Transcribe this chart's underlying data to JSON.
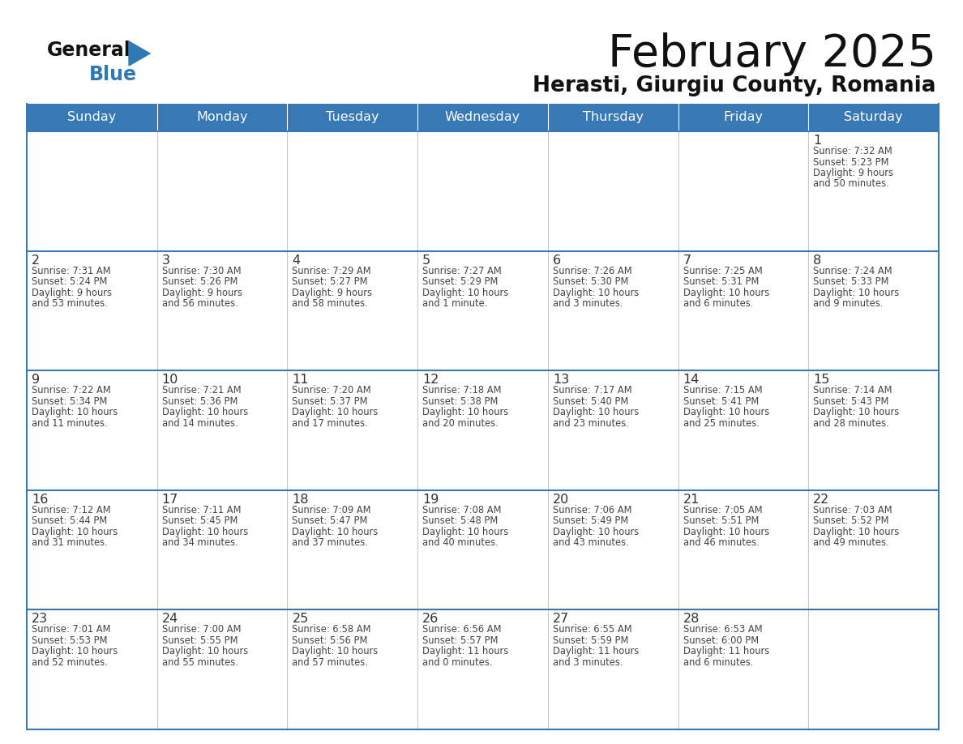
{
  "title": "February 2025",
  "subtitle": "Herasti, Giurgiu County, Romania",
  "days_of_week": [
    "Sunday",
    "Monday",
    "Tuesday",
    "Wednesday",
    "Thursday",
    "Friday",
    "Saturday"
  ],
  "header_bg": "#3878b4",
  "header_text": "#ffffff",
  "cell_bg": "#ffffff",
  "cell_border": "#3878b4",
  "row_separator": "#3878b4",
  "col_separator": "#aaaaaa",
  "day_number_color": "#333333",
  "cell_text_color": "#444444",
  "title_color": "#111111",
  "subtitle_color": "#111111",
  "calendar_data": [
    [
      null,
      null,
      null,
      null,
      null,
      null,
      {
        "day": "1",
        "sunrise": "7:32 AM",
        "sunset": "5:23 PM",
        "daylight": "9 hours",
        "daylight2": "and 50 minutes."
      }
    ],
    [
      {
        "day": "2",
        "sunrise": "7:31 AM",
        "sunset": "5:24 PM",
        "daylight": "9 hours",
        "daylight2": "and 53 minutes."
      },
      {
        "day": "3",
        "sunrise": "7:30 AM",
        "sunset": "5:26 PM",
        "daylight": "9 hours",
        "daylight2": "and 56 minutes."
      },
      {
        "day": "4",
        "sunrise": "7:29 AM",
        "sunset": "5:27 PM",
        "daylight": "9 hours",
        "daylight2": "and 58 minutes."
      },
      {
        "day": "5",
        "sunrise": "7:27 AM",
        "sunset": "5:29 PM",
        "daylight": "10 hours",
        "daylight2": "and 1 minute."
      },
      {
        "day": "6",
        "sunrise": "7:26 AM",
        "sunset": "5:30 PM",
        "daylight": "10 hours",
        "daylight2": "and 3 minutes."
      },
      {
        "day": "7",
        "sunrise": "7:25 AM",
        "sunset": "5:31 PM",
        "daylight": "10 hours",
        "daylight2": "and 6 minutes."
      },
      {
        "day": "8",
        "sunrise": "7:24 AM",
        "sunset": "5:33 PM",
        "daylight": "10 hours",
        "daylight2": "and 9 minutes."
      }
    ],
    [
      {
        "day": "9",
        "sunrise": "7:22 AM",
        "sunset": "5:34 PM",
        "daylight": "10 hours",
        "daylight2": "and 11 minutes."
      },
      {
        "day": "10",
        "sunrise": "7:21 AM",
        "sunset": "5:36 PM",
        "daylight": "10 hours",
        "daylight2": "and 14 minutes."
      },
      {
        "day": "11",
        "sunrise": "7:20 AM",
        "sunset": "5:37 PM",
        "daylight": "10 hours",
        "daylight2": "and 17 minutes."
      },
      {
        "day": "12",
        "sunrise": "7:18 AM",
        "sunset": "5:38 PM",
        "daylight": "10 hours",
        "daylight2": "and 20 minutes."
      },
      {
        "day": "13",
        "sunrise": "7:17 AM",
        "sunset": "5:40 PM",
        "daylight": "10 hours",
        "daylight2": "and 23 minutes."
      },
      {
        "day": "14",
        "sunrise": "7:15 AM",
        "sunset": "5:41 PM",
        "daylight": "10 hours",
        "daylight2": "and 25 minutes."
      },
      {
        "day": "15",
        "sunrise": "7:14 AM",
        "sunset": "5:43 PM",
        "daylight": "10 hours",
        "daylight2": "and 28 minutes."
      }
    ],
    [
      {
        "day": "16",
        "sunrise": "7:12 AM",
        "sunset": "5:44 PM",
        "daylight": "10 hours",
        "daylight2": "and 31 minutes."
      },
      {
        "day": "17",
        "sunrise": "7:11 AM",
        "sunset": "5:45 PM",
        "daylight": "10 hours",
        "daylight2": "and 34 minutes."
      },
      {
        "day": "18",
        "sunrise": "7:09 AM",
        "sunset": "5:47 PM",
        "daylight": "10 hours",
        "daylight2": "and 37 minutes."
      },
      {
        "day": "19",
        "sunrise": "7:08 AM",
        "sunset": "5:48 PM",
        "daylight": "10 hours",
        "daylight2": "and 40 minutes."
      },
      {
        "day": "20",
        "sunrise": "7:06 AM",
        "sunset": "5:49 PM",
        "daylight": "10 hours",
        "daylight2": "and 43 minutes."
      },
      {
        "day": "21",
        "sunrise": "7:05 AM",
        "sunset": "5:51 PM",
        "daylight": "10 hours",
        "daylight2": "and 46 minutes."
      },
      {
        "day": "22",
        "sunrise": "7:03 AM",
        "sunset": "5:52 PM",
        "daylight": "10 hours",
        "daylight2": "and 49 minutes."
      }
    ],
    [
      {
        "day": "23",
        "sunrise": "7:01 AM",
        "sunset": "5:53 PM",
        "daylight": "10 hours",
        "daylight2": "and 52 minutes."
      },
      {
        "day": "24",
        "sunrise": "7:00 AM",
        "sunset": "5:55 PM",
        "daylight": "10 hours",
        "daylight2": "and 55 minutes."
      },
      {
        "day": "25",
        "sunrise": "6:58 AM",
        "sunset": "5:56 PM",
        "daylight": "10 hours",
        "daylight2": "and 57 minutes."
      },
      {
        "day": "26",
        "sunrise": "6:56 AM",
        "sunset": "5:57 PM",
        "daylight": "11 hours",
        "daylight2": "and 0 minutes."
      },
      {
        "day": "27",
        "sunrise": "6:55 AM",
        "sunset": "5:59 PM",
        "daylight": "11 hours",
        "daylight2": "and 3 minutes."
      },
      {
        "day": "28",
        "sunrise": "6:53 AM",
        "sunset": "6:00 PM",
        "daylight": "11 hours",
        "daylight2": "and 6 minutes."
      },
      null
    ]
  ]
}
